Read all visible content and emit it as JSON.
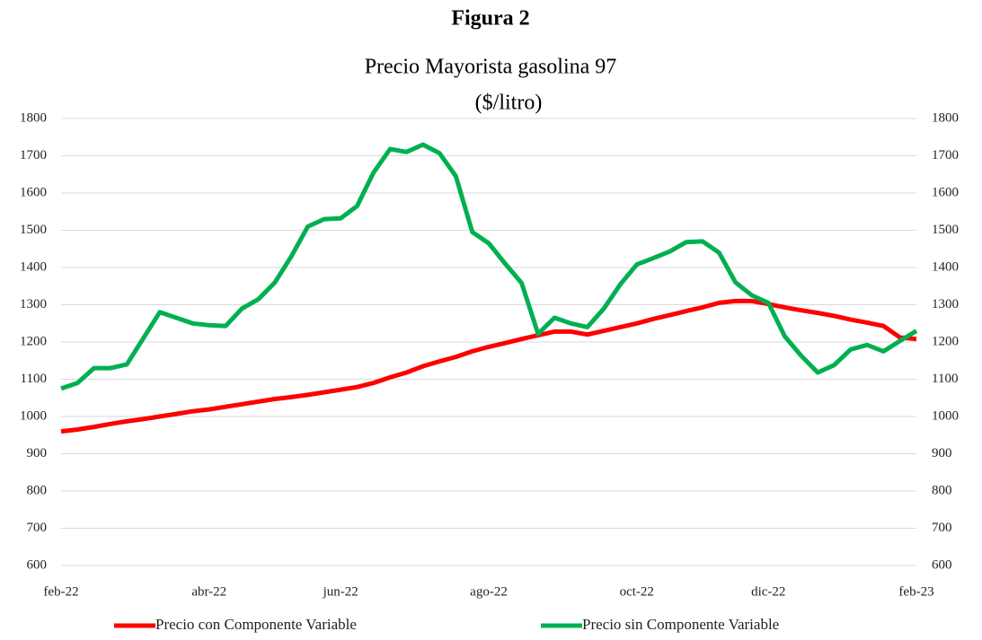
{
  "chart_data": {
    "type": "line",
    "figure_label": "Figura 2",
    "title": "Precio Mayorista gasolina 97",
    "subtitle": "($/litro)",
    "categories": [
      "feb-22",
      null,
      null,
      null,
      null,
      null,
      null,
      null,
      null,
      "abr-22",
      null,
      null,
      null,
      null,
      null,
      null,
      null,
      "jun-22",
      null,
      null,
      null,
      null,
      null,
      null,
      null,
      null,
      "ago-22",
      null,
      null,
      null,
      null,
      null,
      null,
      null,
      null,
      "oct-22",
      null,
      null,
      null,
      null,
      null,
      null,
      null,
      "dic-22",
      null,
      null,
      null,
      null,
      null,
      null,
      null,
      null,
      "feb-23"
    ],
    "series": [
      {
        "name": "Precio con Componente Variable",
        "color": "#ff0000",
        "values": [
          960,
          965,
          972,
          980,
          987,
          993,
          1000,
          1007,
          1014,
          1019,
          1026,
          1033,
          1040,
          1047,
          1052,
          1058,
          1065,
          1072,
          1079,
          1090,
          1105,
          1118,
          1135,
          1148,
          1160,
          1175,
          1187,
          1197,
          1208,
          1218,
          1228,
          1228,
          1220,
          1230,
          1240,
          1250,
          1262,
          1272,
          1283,
          1293,
          1305,
          1310,
          1310,
          1302,
          1293,
          1285,
          1278,
          1270,
          1260,
          1252,
          1243,
          1212,
          1208
        ]
      },
      {
        "name": "Precio sin Componente Variable",
        "color": "#00b050",
        "values": [
          1075,
          1090,
          1130,
          1130,
          1140,
          1210,
          1280,
          1265,
          1250,
          1245,
          1243,
          1290,
          1315,
          1360,
          1430,
          1510,
          1530,
          1532,
          1565,
          1655,
          1718,
          1710,
          1730,
          1707,
          1645,
          1495,
          1465,
          1410,
          1358,
          1222,
          1265,
          1250,
          1240,
          1290,
          1355,
          1408,
          1425,
          1443,
          1468,
          1470,
          1440,
          1360,
          1325,
          1305,
          1215,
          1163,
          1118,
          1138,
          1180,
          1192,
          1175,
          1203,
          1230
        ]
      }
    ],
    "ylim": [
      600,
      1800
    ],
    "yticks": [
      600,
      700,
      800,
      900,
      1000,
      1100,
      1200,
      1300,
      1400,
      1500,
      1600,
      1700,
      1800
    ],
    "y2lim": [
      600,
      1800
    ],
    "y2ticks": [
      600,
      700,
      800,
      900,
      1000,
      1100,
      1200,
      1300,
      1400,
      1500,
      1600,
      1700,
      1800
    ],
    "grid": true,
    "legend": "bottom"
  }
}
